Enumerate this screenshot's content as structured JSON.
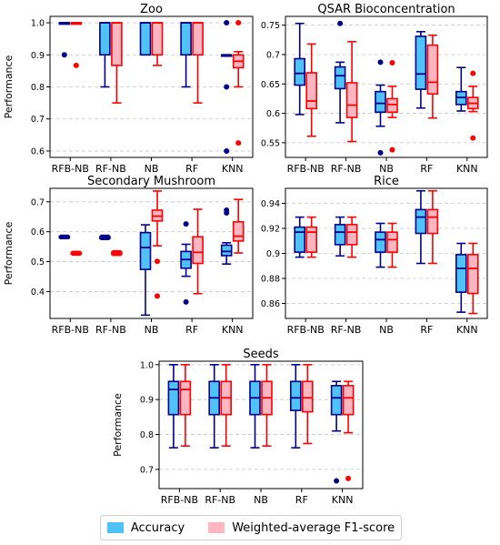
{
  "colors": {
    "acc_fill": "#4fc3f7",
    "acc_stroke": "#00008b",
    "f1_fill": "#ffb6c1",
    "f1_stroke": "#ff0000",
    "grid": "#c8c8c8"
  },
  "legend": [
    {
      "label": "Accuracy",
      "color": "#4fc3f7"
    },
    {
      "label": "Weighted-average F1-score",
      "color": "#ffb6c1"
    }
  ],
  "chart_data": [
    {
      "type": "boxplot",
      "title": "Zoo",
      "ylabel": "Performance",
      "categories": [
        "RFB-NB",
        "RF-NB",
        "NB",
        "RF",
        "KNN"
      ],
      "ylim": [
        0.58,
        1.02
      ],
      "yticks": [
        0.6,
        0.7,
        0.8,
        0.9,
        1.0
      ],
      "series": [
        {
          "name": "Accuracy",
          "boxes": [
            {
              "whislo": 1.0,
              "q1": 1.0,
              "med": 1.0,
              "q3": 1.0,
              "whishi": 1.0,
              "fliers": [
                0.9
              ]
            },
            {
              "whislo": 0.8,
              "q1": 0.9,
              "med": 1.0,
              "q3": 1.0,
              "whishi": 1.0,
              "fliers": []
            },
            {
              "whislo": 0.9,
              "q1": 0.9,
              "med": 1.0,
              "q3": 1.0,
              "whishi": 1.0,
              "fliers": []
            },
            {
              "whislo": 0.8,
              "q1": 0.9,
              "med": 1.0,
              "q3": 1.0,
              "whishi": 1.0,
              "fliers": []
            },
            {
              "whislo": 0.9,
              "q1": 0.9,
              "med": 0.9,
              "q3": 0.9,
              "whishi": 0.9,
              "fliers": [
                1.0,
                0.8,
                0.6
              ]
            }
          ]
        },
        {
          "name": "Weighted-average F1-score",
          "boxes": [
            {
              "whislo": 1.0,
              "q1": 1.0,
              "med": 1.0,
              "q3": 1.0,
              "whishi": 1.0,
              "fliers": [
                0.867
              ]
            },
            {
              "whislo": 0.75,
              "q1": 0.867,
              "med": 1.0,
              "q3": 1.0,
              "whishi": 1.0,
              "fliers": []
            },
            {
              "whislo": 0.867,
              "q1": 0.9,
              "med": 1.0,
              "q3": 1.0,
              "whishi": 1.0,
              "fliers": []
            },
            {
              "whislo": 0.75,
              "q1": 0.9,
              "med": 1.0,
              "q3": 1.0,
              "whishi": 1.0,
              "fliers": []
            },
            {
              "whislo": 0.8,
              "q1": 0.86,
              "med": 0.88,
              "q3": 0.9,
              "whishi": 0.91,
              "fliers": [
                1.0,
                0.625
              ]
            }
          ]
        }
      ]
    },
    {
      "type": "boxplot",
      "title": "QSAR Bioconcentration",
      "ylabel": "",
      "categories": [
        "RFB-NB",
        "RF-NB",
        "NB",
        "RF",
        "KNN"
      ],
      "ylim": [
        0.525,
        0.765
      ],
      "yticks": [
        0.55,
        0.6,
        0.65,
        0.7,
        0.75
      ],
      "series": [
        {
          "name": "Accuracy",
          "boxes": [
            {
              "whislo": 0.598,
              "q1": 0.648,
              "med": 0.668,
              "q3": 0.693,
              "whishi": 0.753,
              "fliers": []
            },
            {
              "whislo": 0.584,
              "q1": 0.642,
              "med": 0.664,
              "q3": 0.679,
              "whishi": 0.687,
              "fliers": [
                0.753
              ]
            },
            {
              "whislo": 0.578,
              "q1": 0.602,
              "med": 0.617,
              "q3": 0.637,
              "whishi": 0.648,
              "fliers": [
                0.533,
                0.687
              ]
            },
            {
              "whislo": 0.609,
              "q1": 0.641,
              "med": 0.667,
              "q3": 0.731,
              "whishi": 0.739,
              "fliers": []
            },
            {
              "whislo": 0.604,
              "q1": 0.615,
              "med": 0.627,
              "q3": 0.637,
              "whishi": 0.678,
              "fliers": []
            }
          ]
        },
        {
          "name": "Weighted-average F1-score",
          "boxes": [
            {
              "whislo": 0.561,
              "q1": 0.608,
              "med": 0.621,
              "q3": 0.669,
              "whishi": 0.718,
              "fliers": []
            },
            {
              "whislo": 0.552,
              "q1": 0.593,
              "med": 0.614,
              "q3": 0.652,
              "whishi": 0.722,
              "fliers": []
            },
            {
              "whislo": 0.593,
              "q1": 0.602,
              "med": 0.615,
              "q3": 0.625,
              "whishi": 0.646,
              "fliers": [
                0.538,
                0.686
              ]
            },
            {
              "whislo": 0.592,
              "q1": 0.633,
              "med": 0.653,
              "q3": 0.716,
              "whishi": 0.733,
              "fliers": []
            },
            {
              "whislo": 0.603,
              "q1": 0.608,
              "med": 0.617,
              "q3": 0.627,
              "whishi": 0.646,
              "fliers": [
                0.558,
                0.668
              ]
            }
          ]
        }
      ]
    },
    {
      "type": "boxplot",
      "title": "Secondary Mushroom",
      "ylabel": "Performance",
      "categories": [
        "RFB-NB",
        "RF-NB",
        "NB",
        "RF",
        "KNN"
      ],
      "ylim": [
        0.31,
        0.745
      ],
      "yticks": [
        0.4,
        0.5,
        0.6,
        0.7
      ],
      "series": [
        {
          "name": "Accuracy",
          "boxes": [
            {
              "whislo": 0.577,
              "q1": 0.579,
              "med": 0.582,
              "q3": 0.585,
              "whishi": 0.588,
              "fliers": []
            },
            {
              "whislo": 0.574,
              "q1": 0.577,
              "med": 0.581,
              "q3": 0.584,
              "whishi": 0.588,
              "fliers": []
            },
            {
              "whislo": 0.321,
              "q1": 0.474,
              "med": 0.547,
              "q3": 0.597,
              "whishi": 0.623,
              "fliers": []
            },
            {
              "whislo": 0.451,
              "q1": 0.478,
              "med": 0.507,
              "q3": 0.534,
              "whishi": 0.558,
              "fliers": [
                0.626,
                0.365
              ]
            },
            {
              "whislo": 0.492,
              "q1": 0.52,
              "med": 0.534,
              "q3": 0.555,
              "whishi": 0.563,
              "fliers": [
                0.663,
                0.672
              ]
            }
          ]
        },
        {
          "name": "Weighted-average F1-score",
          "boxes": [
            {
              "whislo": 0.522,
              "q1": 0.525,
              "med": 0.528,
              "q3": 0.531,
              "whishi": 0.534,
              "fliers": []
            },
            {
              "whislo": 0.521,
              "q1": 0.524,
              "med": 0.528,
              "q3": 0.532,
              "whishi": 0.536,
              "fliers": []
            },
            {
              "whislo": 0.553,
              "q1": 0.636,
              "med": 0.652,
              "q3": 0.672,
              "whishi": 0.736,
              "fliers": [
                0.501,
                0.385
              ]
            },
            {
              "whislo": 0.393,
              "q1": 0.494,
              "med": 0.531,
              "q3": 0.583,
              "whishi": 0.675,
              "fliers": []
            },
            {
              "whislo": 0.529,
              "q1": 0.569,
              "med": 0.585,
              "q3": 0.633,
              "whishi": 0.708,
              "fliers": []
            }
          ]
        }
      ]
    },
    {
      "type": "boxplot",
      "title": "Rice",
      "ylabel": "",
      "categories": [
        "RFB-NB",
        "RF-NB",
        "NB",
        "RF",
        "KNN"
      ],
      "ylim": [
        0.848,
        0.952
      ],
      "yticks": [
        0.86,
        0.88,
        0.9,
        0.92,
        0.94
      ],
      "series": [
        {
          "name": "Accuracy",
          "boxes": [
            {
              "whislo": 0.897,
              "q1": 0.901,
              "med": 0.917,
              "q3": 0.921,
              "whishi": 0.929,
              "fliers": []
            },
            {
              "whislo": 0.898,
              "q1": 0.907,
              "med": 0.917,
              "q3": 0.923,
              "whishi": 0.929,
              "fliers": []
            },
            {
              "whislo": 0.889,
              "q1": 0.901,
              "med": 0.911,
              "q3": 0.917,
              "whishi": 0.924,
              "fliers": []
            },
            {
              "whislo": 0.892,
              "q1": 0.916,
              "med": 0.929,
              "q3": 0.935,
              "whishi": 0.95,
              "fliers": []
            },
            {
              "whislo": 0.853,
              "q1": 0.869,
              "med": 0.888,
              "q3": 0.899,
              "whishi": 0.908,
              "fliers": []
            }
          ]
        },
        {
          "name": "Weighted-average F1-score",
          "boxes": [
            {
              "whislo": 0.897,
              "q1": 0.901,
              "med": 0.917,
              "q3": 0.921,
              "whishi": 0.929,
              "fliers": []
            },
            {
              "whislo": 0.897,
              "q1": 0.907,
              "med": 0.917,
              "q3": 0.923,
              "whishi": 0.929,
              "fliers": []
            },
            {
              "whislo": 0.889,
              "q1": 0.901,
              "med": 0.911,
              "q3": 0.917,
              "whishi": 0.924,
              "fliers": []
            },
            {
              "whislo": 0.892,
              "q1": 0.916,
              "med": 0.929,
              "q3": 0.935,
              "whishi": 0.95,
              "fliers": []
            },
            {
              "whislo": 0.852,
              "q1": 0.868,
              "med": 0.888,
              "q3": 0.899,
              "whishi": 0.908,
              "fliers": []
            }
          ]
        }
      ]
    },
    {
      "type": "boxplot",
      "title": "Seeds",
      "ylabel": "Performance",
      "categories": [
        "RFB-NB",
        "RF-NB",
        "NB",
        "RF",
        "KNN"
      ],
      "ylim": [
        0.645,
        1.01
      ],
      "yticks": [
        0.7,
        0.8,
        0.9,
        1.0
      ],
      "series": [
        {
          "name": "Accuracy",
          "boxes": [
            {
              "whislo": 0.762,
              "q1": 0.857,
              "med": 0.929,
              "q3": 0.952,
              "whishi": 1.0,
              "fliers": []
            },
            {
              "whislo": 0.762,
              "q1": 0.857,
              "med": 0.905,
              "q3": 0.952,
              "whishi": 1.0,
              "fliers": []
            },
            {
              "whislo": 0.762,
              "q1": 0.857,
              "med": 0.905,
              "q3": 0.952,
              "whishi": 1.0,
              "fliers": []
            },
            {
              "whislo": 0.762,
              "q1": 0.869,
              "med": 0.905,
              "q3": 0.952,
              "whishi": 1.0,
              "fliers": []
            },
            {
              "whislo": 0.81,
              "q1": 0.857,
              "med": 0.905,
              "q3": 0.94,
              "whishi": 0.952,
              "fliers": [
                0.667
              ]
            }
          ]
        },
        {
          "name": "Weighted-average F1-score",
          "boxes": [
            {
              "whislo": 0.767,
              "q1": 0.857,
              "med": 0.929,
              "q3": 0.952,
              "whishi": 1.0,
              "fliers": []
            },
            {
              "whislo": 0.767,
              "q1": 0.857,
              "med": 0.905,
              "q3": 0.952,
              "whishi": 1.0,
              "fliers": []
            },
            {
              "whislo": 0.767,
              "q1": 0.857,
              "med": 0.905,
              "q3": 0.952,
              "whishi": 1.0,
              "fliers": []
            },
            {
              "whislo": 0.774,
              "q1": 0.865,
              "med": 0.905,
              "q3": 0.952,
              "whishi": 1.0,
              "fliers": []
            },
            {
              "whislo": 0.805,
              "q1": 0.857,
              "med": 0.905,
              "q3": 0.94,
              "whishi": 0.952,
              "fliers": [
                0.674
              ]
            }
          ]
        }
      ]
    }
  ]
}
